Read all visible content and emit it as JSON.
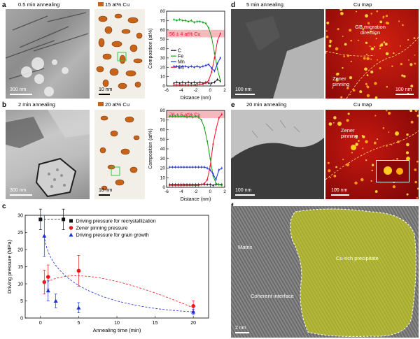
{
  "panels": {
    "a": {
      "letter": "a",
      "tem_title": "0.5 min annealing",
      "apt_title": "15 at% Cu",
      "tem_scale": "300 nm",
      "apt_scale": "10 nm",
      "profile_annotation": "56 ± 4 at% Cu"
    },
    "b": {
      "letter": "b",
      "tem_title": "2 min annealing",
      "apt_title": "20 at% Cu",
      "tem_scale": "300 nm",
      "apt_scale": "10 nm",
      "profile_annotation": "76 ± 5 at% Cu"
    },
    "c": {
      "letter": "c"
    },
    "d": {
      "letter": "d",
      "tem_title": "5 min annealing",
      "map_title": "Cu map",
      "tem_scale": "100 nm",
      "map_scale": "100 nm",
      "gb_label": "GB migration direction",
      "zener_label": "Zener pinning"
    },
    "e": {
      "letter": "e",
      "tem_title": "20 min annealing",
      "map_title": "Cu map",
      "tem_scale": "100 nm",
      "map_scale": "100 nm",
      "zener_label": "Zener pinning"
    },
    "f": {
      "letter": "f",
      "matrix_label": "Matrix",
      "precip_label": "Cu-rich precipitate",
      "interface_label": "Coherent interface",
      "scale": "2 nm"
    }
  },
  "colors": {
    "C": "#111111",
    "Fe": "#1a9e1a",
    "Mn": "#1a2fd6",
    "Cu": "#e8132a",
    "band": "#f2a0a6",
    "apt_dot": "#c8641a",
    "recryst": "#111111",
    "zener": "#e81a1a",
    "grain": "#1a2fd6",
    "map_bg": "#c01010",
    "precip_overlay": "#d8e000"
  },
  "chart_data": [
    {
      "type": "line",
      "id": "profile-a",
      "xlabel": "Distance (nm)",
      "ylabel": "Composition (at%)",
      "xlim": [
        -6,
        2
      ],
      "ylim": [
        0,
        80
      ],
      "xticks": [
        -6,
        -4,
        -2,
        0,
        2
      ],
      "yticks": [
        0,
        10,
        20,
        30,
        40,
        50,
        60,
        70,
        80
      ],
      "x": [
        -5,
        -4.6,
        -4.2,
        -3.8,
        -3.4,
        -3,
        -2.6,
        -2.2,
        -1.8,
        -1.4,
        -1,
        -0.6,
        -0.2,
        0.2,
        0.6,
        1,
        1.4
      ],
      "series": [
        {
          "name": "C",
          "values": [
            3,
            4,
            3,
            4,
            3,
            4,
            3,
            4,
            3,
            4,
            3,
            4,
            3,
            3,
            4,
            7,
            5
          ]
        },
        {
          "name": "Fe",
          "values": [
            71,
            70,
            71,
            70,
            70,
            69,
            70,
            68,
            69,
            69,
            68,
            67,
            62,
            52,
            35,
            18,
            6
          ]
        },
        {
          "name": "Mn",
          "values": [
            21,
            21,
            20,
            21,
            21,
            20,
            21,
            20,
            21,
            20,
            21,
            22,
            23,
            19,
            16,
            24,
            30
          ]
        },
        {
          "name": "Cu",
          "values": [
            1,
            1,
            1,
            1,
            1,
            1,
            1,
            1,
            1,
            2,
            2,
            3,
            6,
            15,
            30,
            48,
            56
          ]
        }
      ]
    },
    {
      "type": "line",
      "id": "profile-b",
      "xlabel": "Distance (nm)",
      "ylabel": "Composition (at%)",
      "xlim": [
        -6,
        2
      ],
      "ylim": [
        0,
        80
      ],
      "xticks": [
        -6,
        -4,
        -2,
        0,
        2
      ],
      "yticks": [
        0,
        10,
        20,
        30,
        40,
        50,
        60,
        70,
        80
      ],
      "x": [
        -5.6,
        -5.2,
        -4.8,
        -4.4,
        -4,
        -3.6,
        -3.2,
        -2.8,
        -2.4,
        -2,
        -1.6,
        -1.2,
        -0.8,
        -0.4,
        0,
        0.4,
        0.8,
        1.2,
        1.6
      ],
      "series": [
        {
          "name": "C",
          "values": [
            3,
            3,
            3,
            3,
            3,
            3,
            3,
            3,
            3,
            3,
            3,
            3,
            3,
            3,
            3,
            2,
            3,
            3,
            3
          ]
        },
        {
          "name": "Fe",
          "values": [
            74,
            74,
            74,
            74,
            74,
            74,
            73,
            74,
            73,
            74,
            73,
            70,
            62,
            48,
            30,
            12,
            4,
            3,
            2
          ]
        },
        {
          "name": "Mn",
          "values": [
            21,
            21,
            21,
            21,
            21,
            21,
            21,
            21,
            21,
            21,
            21,
            21,
            21,
            20,
            18,
            14,
            8,
            18,
            20
          ]
        },
        {
          "name": "Cu",
          "values": [
            2,
            2,
            2,
            2,
            2,
            2,
            2,
            2,
            2,
            2,
            2,
            3,
            4,
            8,
            22,
            45,
            60,
            72,
            76
          ]
        }
      ]
    },
    {
      "type": "scatter",
      "id": "driving-pressure",
      "xlabel": "Annealing time (min)",
      "ylabel": "Driving pressure (MPa)",
      "xlim": [
        -2,
        22
      ],
      "ylim": [
        0,
        30
      ],
      "xticks": [
        0,
        5,
        10,
        15,
        20
      ],
      "yticks": [
        0,
        5,
        10,
        15,
        20,
        25,
        30
      ],
      "series": [
        {
          "name": "Driving pressure for recrystallization",
          "x": [
            0,
            3
          ],
          "y": [
            28.8,
            28.8
          ],
          "yerr": [
            3,
            3
          ]
        },
        {
          "name": "Zener pinning pressure",
          "x": [
            0.5,
            1,
            5,
            20
          ],
          "y": [
            10.5,
            12,
            13.8,
            3.5
          ],
          "yerr": [
            3.5,
            3.5,
            4.5,
            1.5
          ]
        },
        {
          "name": "Driving pressure for grain growth",
          "x": [
            0.5,
            1,
            2,
            5,
            20
          ],
          "y": [
            24,
            8,
            5,
            3,
            1.8
          ],
          "yerr": [
            6,
            3,
            2,
            1.5,
            0.8
          ]
        }
      ]
    }
  ]
}
